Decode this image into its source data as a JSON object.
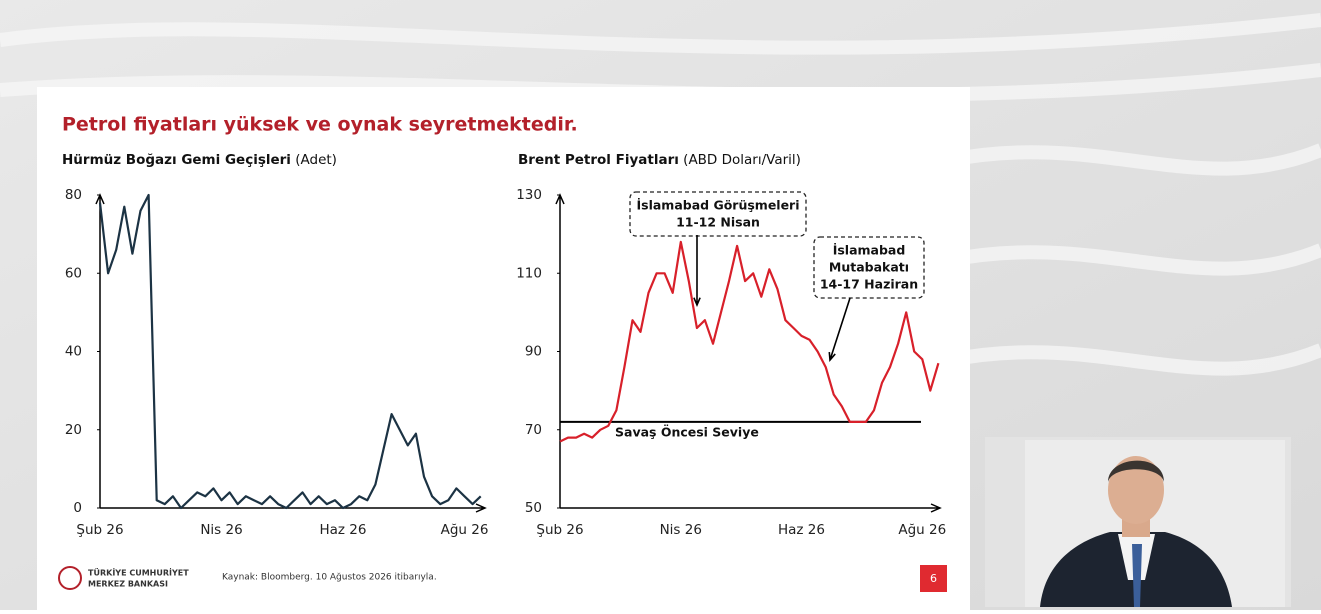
{
  "slide": {
    "title": "Petrol fiyatları yüksek ve oynak seyretmektedir.",
    "source": "Kaynak: Bloomberg. 10 Ağustos 2026 itibarıyla.",
    "page_number": "6",
    "logo": [
      "TÜRKİYE CUMHURİYET",
      "MERKEZ BANKASI"
    ]
  },
  "chart_data": [
    {
      "type": "line",
      "title": "Hürmüz Boğazı Gemi Geçişleri",
      "unit": "(Adet)",
      "categories": [
        "Şub 26",
        null,
        null,
        null,
        null,
        null,
        null,
        null,
        null,
        null,
        null,
        null,
        null,
        null,
        null,
        "Nis 26",
        null,
        null,
        null,
        null,
        null,
        null,
        null,
        null,
        null,
        null,
        null,
        null,
        null,
        null,
        "Haz 26",
        null,
        null,
        null,
        null,
        null,
        null,
        null,
        null,
        null,
        null,
        null,
        null,
        null,
        null,
        "Ağu 26",
        null,
        null
      ],
      "series": [
        {
          "color": "#1c3344",
          "values": [
            78,
            60,
            66,
            77,
            65,
            76,
            80,
            2,
            1,
            3,
            0,
            2,
            4,
            3,
            5,
            2,
            4,
            1,
            3,
            2,
            1,
            3,
            1,
            0,
            2,
            4,
            1,
            3,
            1,
            2,
            0,
            1,
            3,
            2,
            6,
            15,
            24,
            20,
            16,
            19,
            8,
            3,
            1,
            2,
            5,
            3,
            1,
            3
          ]
        }
      ],
      "ylim": [
        0,
        80
      ],
      "yticks": [
        0,
        20,
        40,
        60,
        80
      ]
    },
    {
      "type": "line",
      "title": "Brent Petrol Fiyatları",
      "unit": "(ABD Doları/Varil)",
      "categories": [
        "Şub 26",
        null,
        null,
        null,
        null,
        null,
        null,
        null,
        null,
        null,
        null,
        null,
        null,
        null,
        null,
        "Nis 26",
        null,
        null,
        null,
        null,
        null,
        null,
        null,
        null,
        null,
        null,
        null,
        null,
        null,
        null,
        "Haz 26",
        null,
        null,
        null,
        null,
        null,
        null,
        null,
        null,
        null,
        null,
        null,
        null,
        null,
        null,
        "Ağu 26",
        null,
        null
      ],
      "series": [
        {
          "color": "#d8202a",
          "values": [
            67,
            68,
            68,
            69,
            68,
            70,
            71,
            75,
            86,
            98,
            95,
            105,
            110,
            110,
            105,
            118,
            108,
            96,
            98,
            92,
            100,
            108,
            117,
            108,
            110,
            104,
            111,
            106,
            98,
            96,
            94,
            93,
            90,
            86,
            79,
            76,
            72,
            72,
            72,
            75,
            82,
            86,
            92,
            100,
            90,
            88,
            80,
            87
          ]
        }
      ],
      "ylim": [
        50,
        130
      ],
      "yticks": [
        50,
        70,
        90,
        110,
        130
      ],
      "reference_line": {
        "value": 72,
        "label": "Savaş Öncesi Seviye"
      },
      "annotations": [
        {
          "lines": [
            "İslamabad Görüşmeleri",
            "11-12 Nisan"
          ]
        },
        {
          "lines": [
            "İslamabad",
            "Mutabakatı",
            "14-17 Haziran"
          ]
        }
      ]
    }
  ]
}
